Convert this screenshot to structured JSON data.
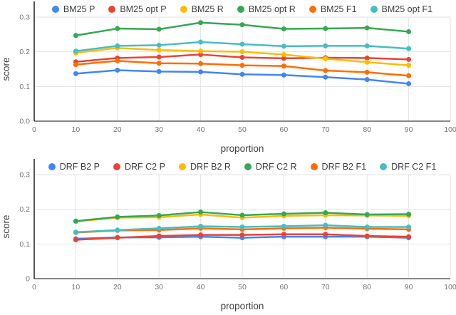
{
  "figure": {
    "background": "#ffffff"
  },
  "style": {
    "grid_color": "#e3e3e3",
    "baseline_color": "#757575",
    "yaxis_line_color": "#212121",
    "tick_label_color": "#757575",
    "axis_title_color": "#424242",
    "legend_text_color": "#3c4043"
  },
  "chart_data": [
    {
      "type": "line",
      "title": "",
      "xlabel": "proportion",
      "ylabel": "score",
      "xlim": [
        0,
        100
      ],
      "ylim": [
        0,
        0.3
      ],
      "xticks": [
        0,
        10,
        20,
        30,
        40,
        50,
        60,
        70,
        80,
        90,
        100
      ],
      "yticks": [
        0,
        0.1,
        0.2,
        0.3
      ],
      "ytick_labels": [
        "0.0",
        "0.1",
        "0.2",
        "0.3"
      ],
      "grid": true,
      "legend_position": "top",
      "x": [
        10,
        20,
        30,
        40,
        50,
        60,
        70,
        80,
        90
      ],
      "series": [
        {
          "name": "BM25 P",
          "color": "#4285f4",
          "values": [
            0.137,
            0.147,
            0.143,
            0.142,
            0.135,
            0.133,
            0.127,
            0.12,
            0.108
          ]
        },
        {
          "name": "BM25 opt P",
          "color": "#ea4335",
          "values": [
            0.171,
            0.182,
            0.185,
            0.192,
            0.184,
            0.181,
            0.183,
            0.182,
            0.178
          ]
        },
        {
          "name": "BM25 R",
          "color": "#fbbc04",
          "values": [
            0.197,
            0.211,
            0.205,
            0.202,
            0.2,
            0.192,
            0.18,
            0.17,
            0.161
          ]
        },
        {
          "name": "BM25 opt R",
          "color": "#34a853",
          "values": [
            0.247,
            0.267,
            0.265,
            0.284,
            0.278,
            0.266,
            0.267,
            0.269,
            0.258
          ]
        },
        {
          "name": "BM25 F1",
          "color": "#ff6d01",
          "values": [
            0.163,
            0.174,
            0.167,
            0.166,
            0.161,
            0.159,
            0.146,
            0.141,
            0.131
          ]
        },
        {
          "name": "BM25 opt F1",
          "color": "#46bdc6",
          "values": [
            0.202,
            0.217,
            0.219,
            0.228,
            0.222,
            0.216,
            0.217,
            0.217,
            0.209
          ]
        }
      ]
    },
    {
      "type": "line",
      "title": "",
      "xlabel": "proportion",
      "ylabel": "score",
      "xlim": [
        0,
        100
      ],
      "ylim": [
        0,
        0.3
      ],
      "xticks": [
        0,
        10,
        20,
        30,
        40,
        50,
        60,
        70,
        80,
        90,
        100
      ],
      "yticks": [
        0,
        0.1,
        0.2,
        0.3
      ],
      "ytick_labels": [
        "0",
        "0.1",
        "0.2",
        "0.3"
      ],
      "grid": true,
      "legend_position": "top",
      "x": [
        10,
        20,
        30,
        40,
        50,
        60,
        70,
        80,
        90
      ],
      "series": [
        {
          "name": "DRF B2 P",
          "color": "#4285f4",
          "values": [
            0.115,
            0.119,
            0.119,
            0.121,
            0.118,
            0.121,
            0.121,
            0.121,
            0.118
          ]
        },
        {
          "name": "DRF C2 P",
          "color": "#ea4335",
          "values": [
            0.112,
            0.118,
            0.123,
            0.126,
            0.126,
            0.128,
            0.128,
            0.123,
            0.121
          ]
        },
        {
          "name": "DRF B2 R",
          "color": "#fbbc04",
          "values": [
            0.165,
            0.176,
            0.177,
            0.185,
            0.176,
            0.181,
            0.183,
            0.182,
            0.181
          ]
        },
        {
          "name": "DRF C2 R",
          "color": "#34a853",
          "values": [
            0.166,
            0.178,
            0.182,
            0.192,
            0.183,
            0.187,
            0.19,
            0.185,
            0.186
          ]
        },
        {
          "name": "DRF B2 F1",
          "color": "#ff6d01",
          "values": [
            0.133,
            0.139,
            0.14,
            0.145,
            0.142,
            0.145,
            0.147,
            0.144,
            0.142
          ]
        },
        {
          "name": "DRF C2 F1",
          "color": "#46bdc6",
          "values": [
            0.134,
            0.14,
            0.145,
            0.151,
            0.149,
            0.151,
            0.154,
            0.149,
            0.149
          ]
        }
      ]
    }
  ]
}
